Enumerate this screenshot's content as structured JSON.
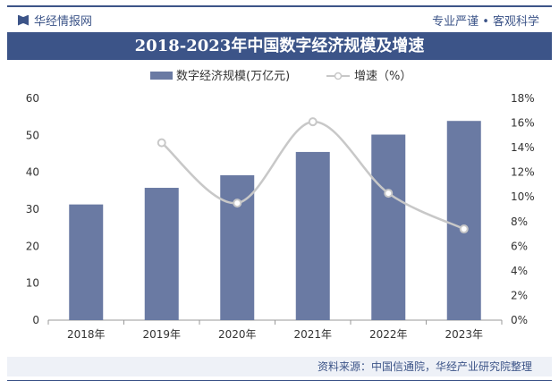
{
  "header": {
    "brand": "华经情报网",
    "slogan": "专业严谨 • 客观科学",
    "title": "2018-2023年中国数字经济规模及增速"
  },
  "footer": {
    "source": "资料来源：中国信通院，华经产业研究院整理",
    "watermark": "华经产业研究院"
  },
  "colors": {
    "bar": "#6a7aa3",
    "line": "#c8c8c8",
    "accent": "#3c5488"
  },
  "chart_data": {
    "type": "bar+line",
    "categories": [
      "2018年",
      "2019年",
      "2020年",
      "2021年",
      "2022年",
      "2023年"
    ],
    "series": [
      {
        "name": "数字经济规模(万亿元)",
        "type": "bar",
        "axis": "left",
        "values": [
          31.3,
          35.8,
          39.2,
          45.5,
          50.2,
          53.9
        ]
      },
      {
        "name": "增速（%）",
        "type": "line",
        "axis": "right",
        "values": [
          null,
          14.4,
          9.5,
          16.1,
          10.3,
          7.4
        ]
      }
    ],
    "ylim": [
      0,
      60
    ],
    "yticks": [
      "0",
      "10",
      "20",
      "30",
      "40",
      "50",
      "60"
    ],
    "y2lim": [
      0,
      18
    ],
    "y2ticks": [
      "0%",
      "2%",
      "4%",
      "6%",
      "8%",
      "10%",
      "12%",
      "14%",
      "16%",
      "18%"
    ],
    "legend": "top",
    "grid": false
  }
}
